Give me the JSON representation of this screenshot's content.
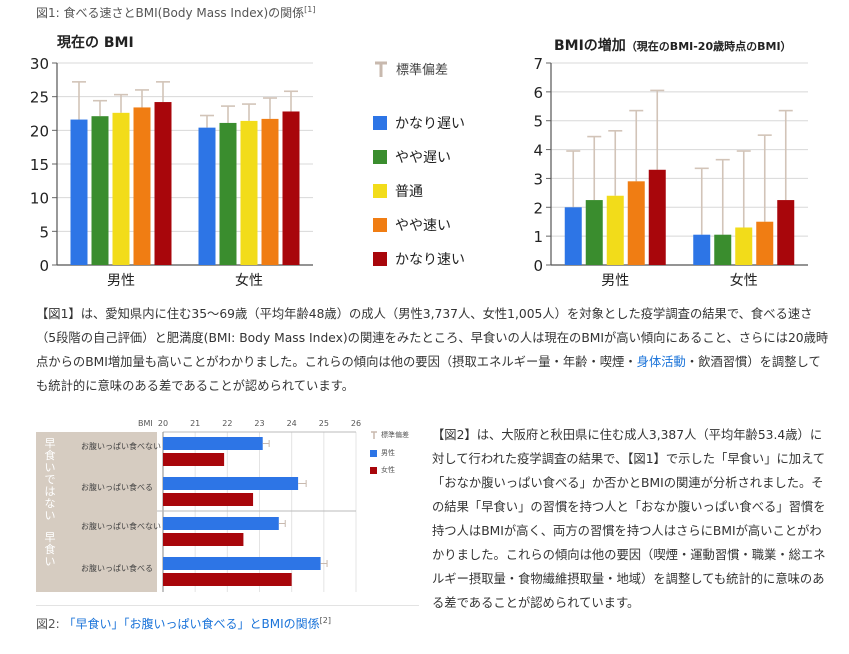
{
  "fig1_caption": "図1: 食べる速さとBMI(Body Mass Index)の関係",
  "fig1_ref": "[1]",
  "legend1": {
    "sd": "標準偏差",
    "items": [
      {
        "label": "かなり遅い",
        "color": "#2d75e6"
      },
      {
        "label": "やや遅い",
        "color": "#3a8d2e"
      },
      {
        "label": "普通",
        "color": "#f2dc1a"
      },
      {
        "label": "やや速い",
        "color": "#f07d13"
      },
      {
        "label": "かなり速い",
        "color": "#a8060b"
      }
    ]
  },
  "para1": {
    "pre": "【図1】は、愛知県内に住む35〜69歳（平均年齢48歳）の成人（男性3,737人、女性1,005人）を対象とした疫学調査の結果で、食べる速さ（5段階の自己評価）と肥満度(BMI: Body Mass Index)の関連をみたところ、早食いの人は現在のBMIが高い傾向にあること、さらには20歳時点からのBMI増加量も高いことがわかりました。これらの傾向は他の要因（摂取エネルギー量・年齢・喫煙・",
    "link": "身体活動",
    "post": "・飲酒習慣）を調整しても統計的に意味のある差であることが認められています。"
  },
  "para2": "【図2】は、大阪府と秋田県に住む成人3,387人（平均年齢53.4歳）に対して行われた疫学調査の結果で、【図1】で示した「早食い」に加えて「おなか腹いっぱい食べる」か否かとBMIの関連が分析されました。その結果「早食い」の習慣を持つ人と「おなか腹いっぱい食べる」習慣を持つ人はBMIが高く、両方の習慣を持つ人はさらにBMIが高いことがわかりました。これらの傾向は他の要因（喫煙・運動習慣・職業・総エネルギー摂取量・食物繊維摂取量・地域）を調整しても統計的に意味のある差であることが認められています。",
  "fig2_caption": {
    "prefix": "図2: ",
    "link": "「早食い」「お腹いっぱい食べる」とBMIの関係",
    "ref": "[2]"
  },
  "chart_data": [
    {
      "type": "bar",
      "title": "現在の BMI",
      "categories": [
        "男性",
        "女性"
      ],
      "ylim": [
        0,
        30
      ],
      "yticks": [
        0,
        5,
        10,
        15,
        20,
        25,
        30
      ],
      "grid": true,
      "legend": "right",
      "series": [
        {
          "name": "かなり遅い",
          "values": [
            21.6,
            20.4
          ],
          "sd_top": [
            27.2,
            22.2
          ]
        },
        {
          "name": "やや遅い",
          "values": [
            22.1,
            21.1
          ],
          "sd_top": [
            24.4,
            23.6
          ]
        },
        {
          "name": "普通",
          "values": [
            22.6,
            21.4
          ],
          "sd_top": [
            25.3,
            23.9
          ]
        },
        {
          "name": "やや速い",
          "values": [
            23.4,
            21.7
          ],
          "sd_top": [
            26.0,
            24.8
          ]
        },
        {
          "name": "かなり速い",
          "values": [
            24.2,
            22.8
          ],
          "sd_top": [
            27.2,
            25.8
          ]
        }
      ]
    },
    {
      "type": "bar",
      "title": "BMIの増加",
      "subtitle": "（現在のBMI-20歳時点のBMI）",
      "categories": [
        "男性",
        "女性"
      ],
      "ylim": [
        0,
        7
      ],
      "yticks": [
        0,
        1,
        2,
        3,
        4,
        5,
        6,
        7
      ],
      "grid": true,
      "series": [
        {
          "name": "かなり遅い",
          "values": [
            2.0,
            1.05
          ],
          "sd_top": [
            3.95,
            3.35
          ]
        },
        {
          "name": "やや遅い",
          "values": [
            2.25,
            1.05
          ],
          "sd_top": [
            4.45,
            3.65
          ]
        },
        {
          "name": "普通",
          "values": [
            2.4,
            1.3
          ],
          "sd_top": [
            4.65,
            3.95
          ]
        },
        {
          "name": "やや速い",
          "values": [
            2.9,
            1.5
          ],
          "sd_top": [
            5.35,
            4.5
          ]
        },
        {
          "name": "かなり速い",
          "values": [
            3.3,
            2.25
          ],
          "sd_top": [
            6.05,
            5.35
          ]
        }
      ]
    },
    {
      "type": "bar",
      "orientation": "horizontal",
      "xlabel": "BMI",
      "xlim": [
        20,
        26
      ],
      "xticks": [
        20,
        21,
        22,
        23,
        24,
        25,
        26
      ],
      "groups": [
        "早食いではない",
        "早食い"
      ],
      "rows": [
        "お腹いっぱい食べない",
        "お腹いっぱい食べる",
        "お腹いっぱい食べない",
        "お腹いっぱい食べる"
      ],
      "legend": {
        "sd": "標準偏差",
        "male": "男性",
        "female": "女性"
      },
      "series": [
        {
          "name": "男性",
          "color": "#2d75e6",
          "values": [
            23.1,
            24.2,
            23.6,
            24.9
          ],
          "err": [
            0.2,
            0.25,
            0.2,
            0.2
          ]
        },
        {
          "name": "女性",
          "color": "#a8060b",
          "values": [
            21.9,
            22.8,
            22.5,
            24.0
          ],
          "err": [
            0,
            0,
            0,
            0
          ]
        }
      ]
    }
  ]
}
